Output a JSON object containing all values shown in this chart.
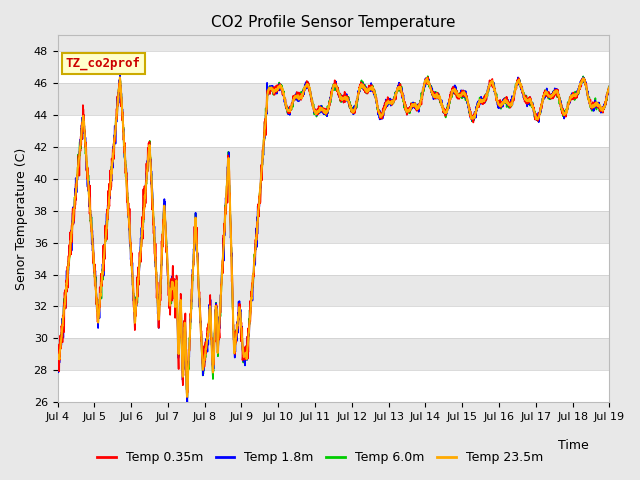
{
  "title": "CO2 Profile Sensor Temperature",
  "xlabel": "Time",
  "ylabel": "Senor Temperature (C)",
  "ylim": [
    26,
    49
  ],
  "yticks": [
    26,
    28,
    30,
    32,
    34,
    36,
    38,
    40,
    42,
    44,
    46,
    48
  ],
  "legend_labels": [
    "Temp 0.35m",
    "Temp 1.8m",
    "Temp 6.0m",
    "Temp 23.5m"
  ],
  "legend_colors": [
    "#ff0000",
    "#0000ff",
    "#00cc00",
    "#ffaa00"
  ],
  "annotation_text": "TZ_co2prof",
  "annotation_color": "#cc0000",
  "annotation_bg": "#ffffcc",
  "annotation_border": "#ccaa00",
  "bg_color": "#e8e8e8",
  "plot_bg": "#f0f0f0",
  "band_light": "#e8e8e8",
  "band_dark": "#d8d8d8",
  "xtick_labels": [
    "Jul 4",
    "Jul 5",
    "Jul 6",
    "Jul 7",
    "Jul 8",
    "Jul 9",
    "Jul 10",
    "Jul 11",
    "Jul 12",
    "Jul 13",
    "Jul 14",
    "Jul 15",
    "Jul 16",
    "Jul 17",
    "Jul 18",
    "Jul 19"
  ],
  "n_days": 15,
  "transition_day": 5.7
}
